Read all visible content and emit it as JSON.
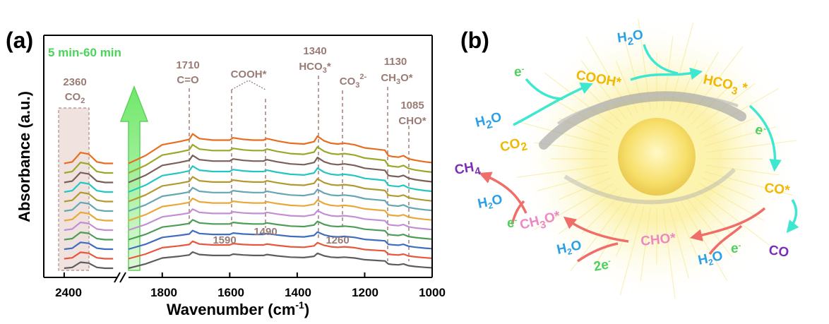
{
  "panel_a_label": "(a)",
  "panel_b_label": "(b)",
  "chart_data": {
    "type": "line",
    "title": "",
    "xlabel": "Wavenumber (cm⁻¹)",
    "ylabel": "Absorbance (a.u.)",
    "xlim": [
      2450,
      1000
    ],
    "x_break": [
      2270,
      1900
    ],
    "xticks": [
      2400,
      1800,
      1600,
      1400,
      1200,
      1000
    ],
    "time_label": "5 min-60 min",
    "series_count": 12,
    "series_colors": [
      "#5d5d5d",
      "#e8563c",
      "#3f6dbf",
      "#4e9d57",
      "#c38fd4",
      "#e8a83a",
      "#66a7b3",
      "#b39a2e",
      "#23c6c3",
      "#7a6058",
      "#9ca82a",
      "#e86d1e",
      "#7b9dc9"
    ],
    "series_offset_step": 0.5,
    "x": [
      2400,
      2380,
      2360,
      2340,
      2320,
      2300,
      2280,
      1900,
      1850,
      1800,
      1750,
      1720,
      1710,
      1690,
      1650,
      1600,
      1590,
      1560,
      1530,
      1500,
      1490,
      1460,
      1420,
      1380,
      1350,
      1340,
      1320,
      1300,
      1280,
      1260,
      1230,
      1200,
      1160,
      1140,
      1130,
      1120,
      1100,
      1085,
      1070,
      1050,
      1020,
      1000
    ],
    "base_profile": [
      0.0,
      0.1,
      0.7,
      0.6,
      0.1,
      0.0,
      0.0,
      0.0,
      0.5,
      1.2,
      1.4,
      1.55,
      1.9,
      1.6,
      1.5,
      1.5,
      1.65,
      1.55,
      1.5,
      1.5,
      1.6,
      1.45,
      1.3,
      1.25,
      1.4,
      1.75,
      1.45,
      1.3,
      1.25,
      1.3,
      1.2,
      1.0,
      0.9,
      0.85,
      0.5,
      0.45,
      0.4,
      0.5,
      0.3,
      0.2,
      0.1,
      0.05
    ],
    "peaks": [
      {
        "wavenumber": 2360,
        "label": "2360",
        "species": "CO₂",
        "position": "top"
      },
      {
        "wavenumber": 1710,
        "label": "1710",
        "species": "C=O",
        "position": "top"
      },
      {
        "wavenumber": 1590,
        "label": "1590",
        "species": "COOH*",
        "position": "bottom"
      },
      {
        "wavenumber": 1490,
        "label": "1490",
        "species": "COOH*",
        "position": "bottom"
      },
      {
        "wavenumber": 1340,
        "label": "1340",
        "species": "HCO₃*",
        "position": "top"
      },
      {
        "wavenumber": 1260,
        "label": "1260",
        "species": "CO₃²⁻",
        "position": "bottom"
      },
      {
        "wavenumber": 1130,
        "label": "1130",
        "species": "CH₃O*",
        "position": "top"
      },
      {
        "wavenumber": 1085,
        "label": "1085",
        "species": "CHO*",
        "position": "top"
      }
    ],
    "annotations": {
      "co2_num": "2360",
      "co2_sp": "CO",
      "co2_sub": "2",
      "p1710_num": "1710",
      "p1710_sp": "C=O",
      "cooh": "COOH*",
      "p1340_num": "1340",
      "p1340_sp": "HCO",
      "p1340_sub": "3",
      "p1340_star": "*",
      "co3_sp": "CO",
      "co3_sub": "3",
      "co3_sup": "2-",
      "p1130_num": "1130",
      "p1130_sp": "CH",
      "p1130_sub": "3",
      "p1130_rest": "O*",
      "p1085_num": "1085",
      "p1085_sp": "CHO*",
      "p1590": "1590",
      "p1490": "1490",
      "p1260": "1260"
    },
    "axis_label_parts": {
      "x_main": "Wavenumber (cm",
      "x_sup": "-1",
      "x_close": ")",
      "y": "Absorbance (a.u.)"
    },
    "tick_labels": [
      "2400",
      "1800",
      "1600",
      "1400",
      "1200",
      "1000"
    ]
  },
  "scheme": {
    "species": {
      "h2o_top": "H2O",
      "cooh": "COOH*",
      "hco3": "HCO3 *",
      "h2o_left": "H2O",
      "co2": "CO2",
      "co_ads": "CO*",
      "co": "CO",
      "ch4": "CH4",
      "ch3o": "CH3O*",
      "cho": "CHO*",
      "h2o_a": "H2O",
      "h2o_b": "H2O",
      "h2o_c": "H2O"
    },
    "electrons": {
      "e1": "e",
      "e2": "e",
      "e3": "e",
      "e4": "e",
      "e5": "2e"
    },
    "colors": {
      "water": "#2aa0e6",
      "carbon": "#f0b800",
      "product": "#7a2fb5",
      "intermediate": "#ee87c4",
      "arrow_cyan": "#3ee8d0",
      "arrow_red": "#f06e6a",
      "electron": "#4fcf5d"
    }
  }
}
